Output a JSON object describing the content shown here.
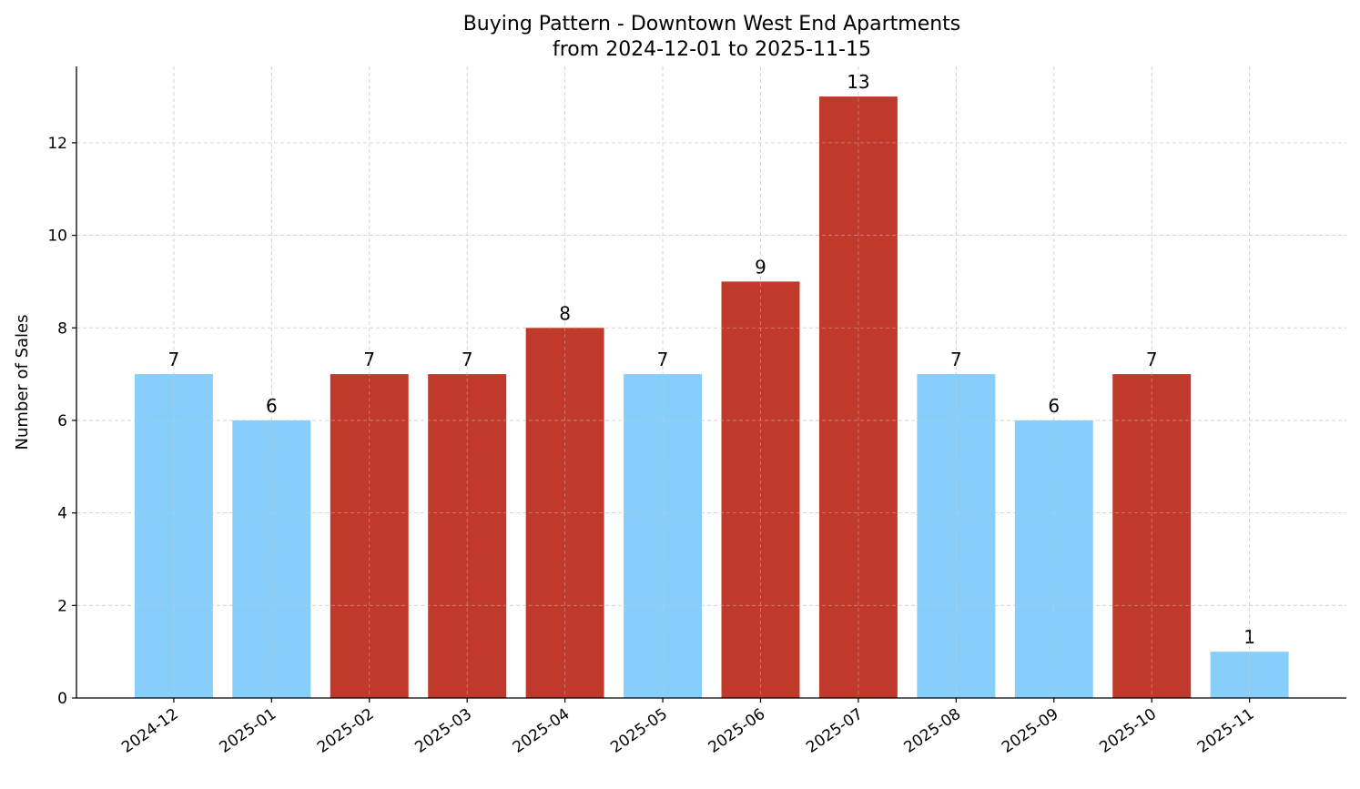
{
  "chart_data": {
    "type": "bar",
    "title": "Buying Pattern - Downtown West End Apartments",
    "subtitle": "from 2024-12-01 to 2025-11-15",
    "xlabel": "",
    "ylabel": "Number of Sales",
    "categories": [
      "2024-12",
      "2025-01",
      "2025-02",
      "2025-03",
      "2025-04",
      "2025-05",
      "2025-06",
      "2025-07",
      "2025-08",
      "2025-09",
      "2025-10",
      "2025-11"
    ],
    "values": [
      7,
      6,
      7,
      7,
      8,
      7,
      9,
      13,
      7,
      6,
      7,
      1
    ],
    "bar_colors": [
      "#87CEFA",
      "#87CEFA",
      "#C0392B",
      "#C0392B",
      "#C0392B",
      "#87CEFA",
      "#C0392B",
      "#C0392B",
      "#87CEFA",
      "#87CEFA",
      "#C0392B",
      "#87CEFA"
    ],
    "ylim": [
      0,
      13.65
    ],
    "yticks": [
      0,
      2,
      4,
      6,
      8,
      10,
      12
    ],
    "grid": true,
    "data_labels": true
  }
}
